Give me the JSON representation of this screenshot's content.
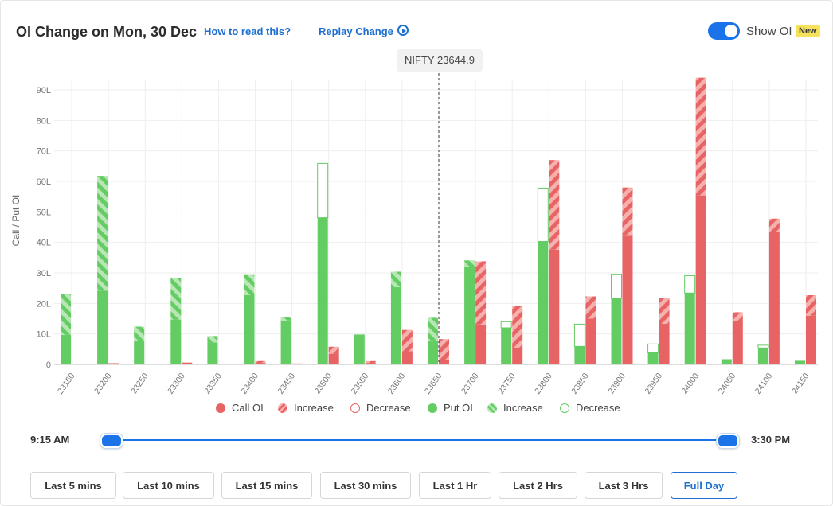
{
  "header": {
    "title": "OI Change on Mon, 30 Dec",
    "how_to_read": "How to read this?",
    "replay": "Replay Change",
    "show_oi_label": "Show OI",
    "new_badge": "New"
  },
  "tooltip": {
    "nifty_label": "NIFTY 23644.9"
  },
  "colors": {
    "call": "#e86464",
    "call_hatch": "#f6b0ad",
    "put": "#63cc63",
    "put_hatch": "#b8e6b4",
    "accent": "#1a73e8"
  },
  "legend": [
    {
      "label": "Call OI",
      "style": "call-solid"
    },
    {
      "label": "Increase",
      "style": "call-hatch"
    },
    {
      "label": "Decrease",
      "style": "call-outline"
    },
    {
      "label": "Put OI",
      "style": "put-solid"
    },
    {
      "label": "Increase",
      "style": "put-hatch"
    },
    {
      "label": "Decrease",
      "style": "put-outline"
    }
  ],
  "slider": {
    "start_label": "9:15 AM",
    "end_label": "3:30 PM"
  },
  "time_buttons": [
    {
      "label": "Last 5 mins",
      "active": false
    },
    {
      "label": "Last 10 mins",
      "active": false
    },
    {
      "label": "Last 15 mins",
      "active": false
    },
    {
      "label": "Last 30 mins",
      "active": false
    },
    {
      "label": "Last 1 Hr",
      "active": false
    },
    {
      "label": "Last 2 Hrs",
      "active": false
    },
    {
      "label": "Last 3 Hrs",
      "active": false
    },
    {
      "label": "Full Day",
      "active": true
    }
  ],
  "chart_data": {
    "type": "bar",
    "ylabel": "Call / Put OI",
    "yticks": [
      "0",
      "10L",
      "20L",
      "30L",
      "40L",
      "50L",
      "60L",
      "70L",
      "80L",
      "90L"
    ],
    "ylim": [
      0,
      90
    ],
    "spot": 23644.9,
    "categories": [
      "23150",
      "23200",
      "23250",
      "23300",
      "23350",
      "23400",
      "23450",
      "23500",
      "23550",
      "23600",
      "23650",
      "23700",
      "23750",
      "23800",
      "23850",
      "23900",
      "23950",
      "24000",
      "24050",
      "24100",
      "24150"
    ],
    "series": [
      {
        "name": "Put OI",
        "values": [
          9.7,
          24.2,
          7.8,
          14.7,
          7.2,
          22.7,
          14.4,
          48.1,
          9.8,
          25.3,
          7.9,
          32.0,
          12.0,
          40.3,
          5.9,
          21.7,
          3.8,
          23.4,
          1.7,
          5.4,
          1.2
        ]
      },
      {
        "name": "Increase",
        "values": [
          13.3,
          37.6,
          4.6,
          13.6,
          2.1,
          6.6,
          1.0,
          0,
          0,
          5.1,
          7.4,
          2.1,
          0,
          0,
          0,
          0,
          0,
          0,
          0,
          0,
          0
        ]
      },
      {
        "name": "Decrease",
        "values": [
          0,
          0,
          0,
          0,
          0,
          0,
          0,
          17.8,
          0,
          0,
          0,
          0,
          2.0,
          17.5,
          7.3,
          7.7,
          2.9,
          5.7,
          0,
          0.9,
          0
        ]
      },
      {
        "name": "Call OI",
        "values": [
          0,
          0.4,
          0,
          0.6,
          0.2,
          0.5,
          0.3,
          3.5,
          0.5,
          4.3,
          1.5,
          13.1,
          5.4,
          37.6,
          15.0,
          42.2,
          13.3,
          55.4,
          14.3,
          43.5,
          16.0
        ]
      },
      {
        "name": "Increase",
        "values": [
          0,
          0,
          0,
          0,
          0,
          0.6,
          0,
          2.3,
          0.6,
          7.0,
          6.8,
          20.7,
          13.8,
          29.4,
          7.3,
          15.8,
          8.6,
          38.6,
          2.8,
          4.3,
          6.7
        ]
      },
      {
        "name": "Decrease",
        "values": [
          0,
          0,
          0,
          0,
          0,
          0,
          0,
          0,
          0,
          0,
          0,
          0,
          0,
          0,
          0,
          0,
          0,
          0,
          0,
          0,
          0
        ]
      }
    ]
  }
}
